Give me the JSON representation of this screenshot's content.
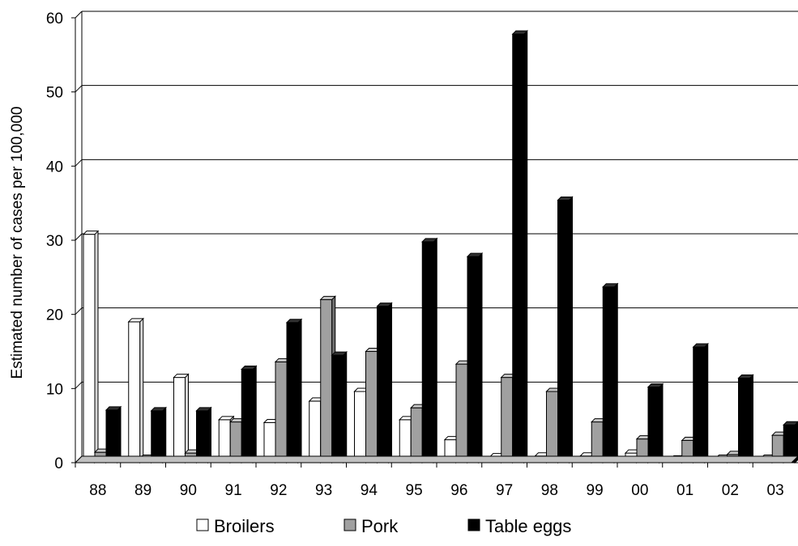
{
  "chart_data": {
    "type": "bar",
    "ylabel": "Estimated number of cases per 100,000",
    "ylim": [
      0,
      60
    ],
    "yticks": [
      "0",
      "10",
      "20",
      "30",
      "40",
      "50",
      "60"
    ],
    "grid": true,
    "legend_position": "bottom",
    "categories": [
      "88",
      "89",
      "90",
      "91",
      "92",
      "93",
      "94",
      "95",
      "96",
      "97",
      "98",
      "99",
      "00",
      "01",
      "02",
      "03"
    ],
    "series": [
      {
        "name": "Broilers",
        "color": "#ffffff",
        "values": [
          30.8,
          19.0,
          11.5,
          5.8,
          5.4,
          8.3,
          9.6,
          5.8,
          3.1,
          0.8,
          0.9,
          0.9,
          1.3,
          0.5,
          0.6,
          0.6
        ]
      },
      {
        "name": "Pork",
        "color": "#a0a0a0",
        "values": [
          1.4,
          0.6,
          1.3,
          5.5,
          13.6,
          22.0,
          15.0,
          7.4,
          13.3,
          11.5,
          9.6,
          5.5,
          3.2,
          3.0,
          1.1,
          3.7
        ]
      },
      {
        "name": "Table eggs",
        "color": "#000000",
        "values": [
          7.1,
          7.0,
          7.0,
          12.6,
          18.9,
          14.5,
          21.1,
          29.8,
          27.8,
          57.8,
          35.4,
          23.7,
          10.2,
          15.6,
          11.4,
          5.1
        ]
      }
    ]
  }
}
